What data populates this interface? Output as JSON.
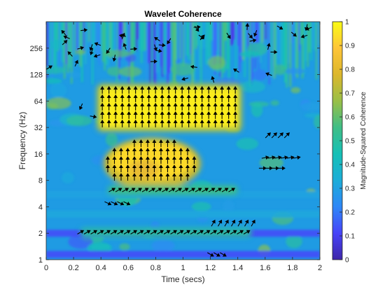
{
  "chart_data": {
    "type": "heatmap",
    "title": "Wavelet Coherence",
    "xlabel": "Time (secs)",
    "ylabel": "Frequency (Hz)",
    "xlim": [
      0,
      2
    ],
    "ylim": [
      1,
      512
    ],
    "y_scale": "log2",
    "x_ticks": [
      "0",
      "0.2",
      "0.4",
      "0.6",
      "0.8",
      "1",
      "1.2",
      "1.4",
      "1.6",
      "1.8",
      "2"
    ],
    "x_tick_values": [
      0,
      0.2,
      0.4,
      0.6,
      0.8,
      1.0,
      1.2,
      1.4,
      1.6,
      1.8,
      2.0
    ],
    "y_ticks": [
      "1",
      "2",
      "4",
      "8",
      "16",
      "32",
      "64",
      "128",
      "256"
    ],
    "y_tick_values": [
      1,
      2,
      4,
      8,
      16,
      32,
      64,
      128,
      256
    ],
    "colorbar": {
      "label": "Magnitude-Squared Coherence",
      "range": [
        0,
        1
      ],
      "ticks": [
        "0",
        "0.1",
        "0.2",
        "0.3",
        "0.4",
        "0.5",
        "0.6",
        "0.7",
        "0.8",
        "0.9",
        "1"
      ],
      "tick_values": [
        0,
        0.1,
        0.2,
        0.3,
        0.4,
        0.5,
        0.6,
        0.7,
        0.8,
        0.9,
        1.0
      ],
      "colormap": "parula",
      "colors": [
        "#3e26a8",
        "#4743f9",
        "#2e87f7",
        "#1cadd8",
        "#15c0b6",
        "#3fbe86",
        "#99bf46",
        "#dcb72c",
        "#fec538",
        "#f9fb14"
      ]
    },
    "regions": [
      {
        "label": "high coherence block",
        "t": [
          0.4,
          1.4
        ],
        "f": [
          32,
          90
        ],
        "coherence": 0.97,
        "phase_deg": 90
      },
      {
        "label": "high coherence blob",
        "t": [
          0.45,
          1.1
        ],
        "f": [
          7,
          22
        ],
        "coherence": 0.93,
        "phase_deg": 90
      },
      {
        "label": "band 6 Hz",
        "t": [
          0.45,
          1.4
        ],
        "f": [
          5.5,
          7
        ],
        "coherence": 0.55,
        "phase_deg": 30
      },
      {
        "label": "band 2 Hz",
        "t": [
          0.25,
          1.5
        ],
        "f": [
          1.8,
          2.3
        ],
        "coherence": 0.5,
        "phase_deg": 30
      }
    ]
  }
}
